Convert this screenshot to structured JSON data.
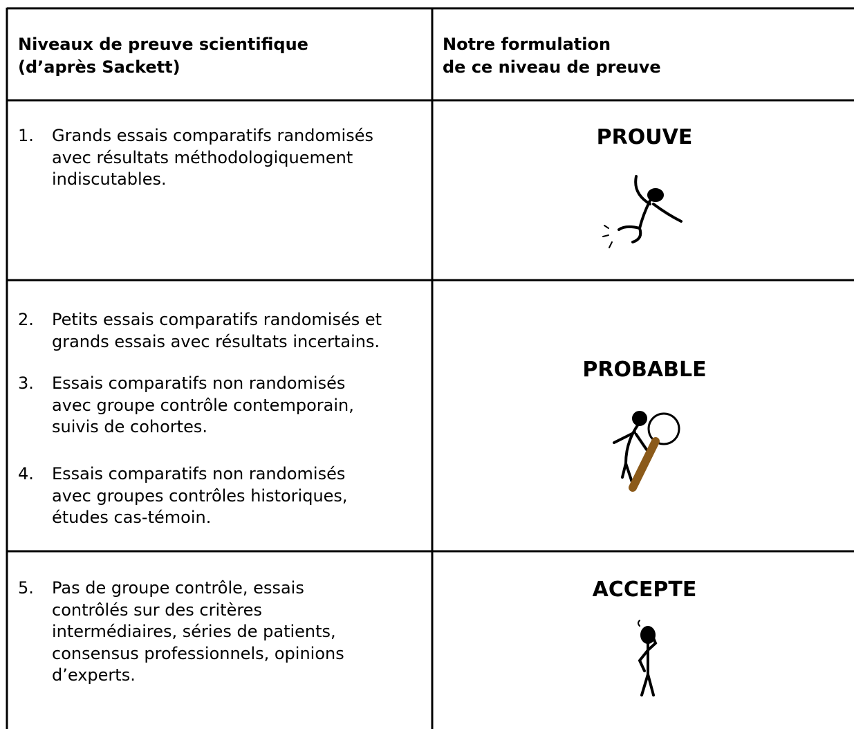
{
  "table": {
    "headers": [
      [
        "Niveaux de preuve scientifique",
        "(d’après Sackett)"
      ],
      [
        "Notre formulation",
        "de ce niveau de preuve"
      ]
    ],
    "rows": [
      {
        "items": [
          {
            "number": "1.",
            "lines": [
              "Grands essais comparatifs randomisés",
              "avec résultats méthodologiquement",
              "indiscutables."
            ]
          }
        ],
        "level": "PROUVE"
      },
      {
        "items": [
          {
            "number": "2.",
            "lines": [
              "Petits essais comparatifs randomisés et",
              "grands essais avec résultats incertains."
            ]
          },
          {
            "number": "3.",
            "lines": [
              "Essais comparatifs non randomisés",
              "avec groupe contrôle contemporain,",
              "suivis de cohortes."
            ]
          },
          {
            "number": "4.",
            "lines": [
              "Essais comparatifs non randomisés",
              "avec groupes contrôles historiques,",
              "études cas-témoin."
            ]
          }
        ],
        "level": "PROBABLE"
      },
      {
        "items": [
          {
            "number": "5.",
            "lines": [
              "Pas de groupe contrôle, essais",
              "contrôlés sur des critères",
              "intermédiaires, séries de patients,",
              "consensus professionnels, opinions",
              "d’experts."
            ]
          }
        ],
        "level": "ACCEPTE"
      }
    ]
  }
}
